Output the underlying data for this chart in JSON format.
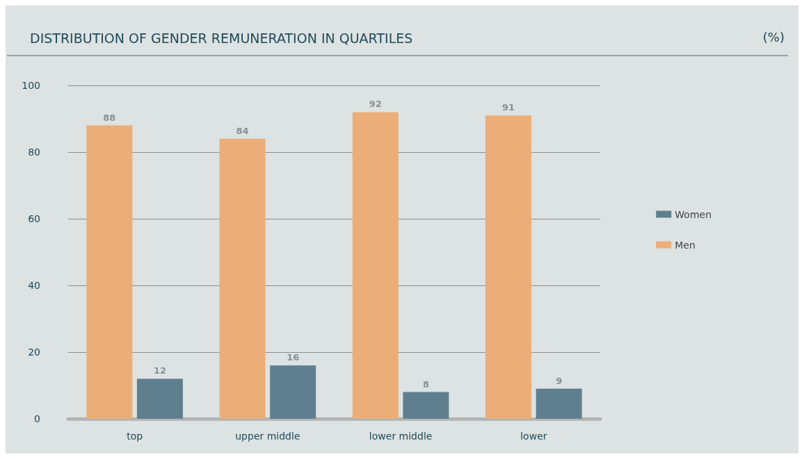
{
  "chart_data": {
    "type": "bar",
    "title": "DISTRIBUTION OF GENDER REMUNERATION IN QUARTILES",
    "annotations": [
      "(%)"
    ],
    "categories": [
      "top",
      "upper middle",
      "lower middle",
      "lower"
    ],
    "series": [
      {
        "name": "Men",
        "color": "#ebae78",
        "values": [
          88,
          84,
          92,
          91
        ]
      },
      {
        "name": "Women",
        "color": "#5f7f8f",
        "values": [
          12,
          16,
          8,
          9
        ]
      }
    ],
    "ylim": [
      0,
      100
    ],
    "yticks": [
      0,
      20,
      40,
      60,
      80,
      100
    ],
    "grid": "y",
    "legend": "right",
    "data_labels": true
  }
}
